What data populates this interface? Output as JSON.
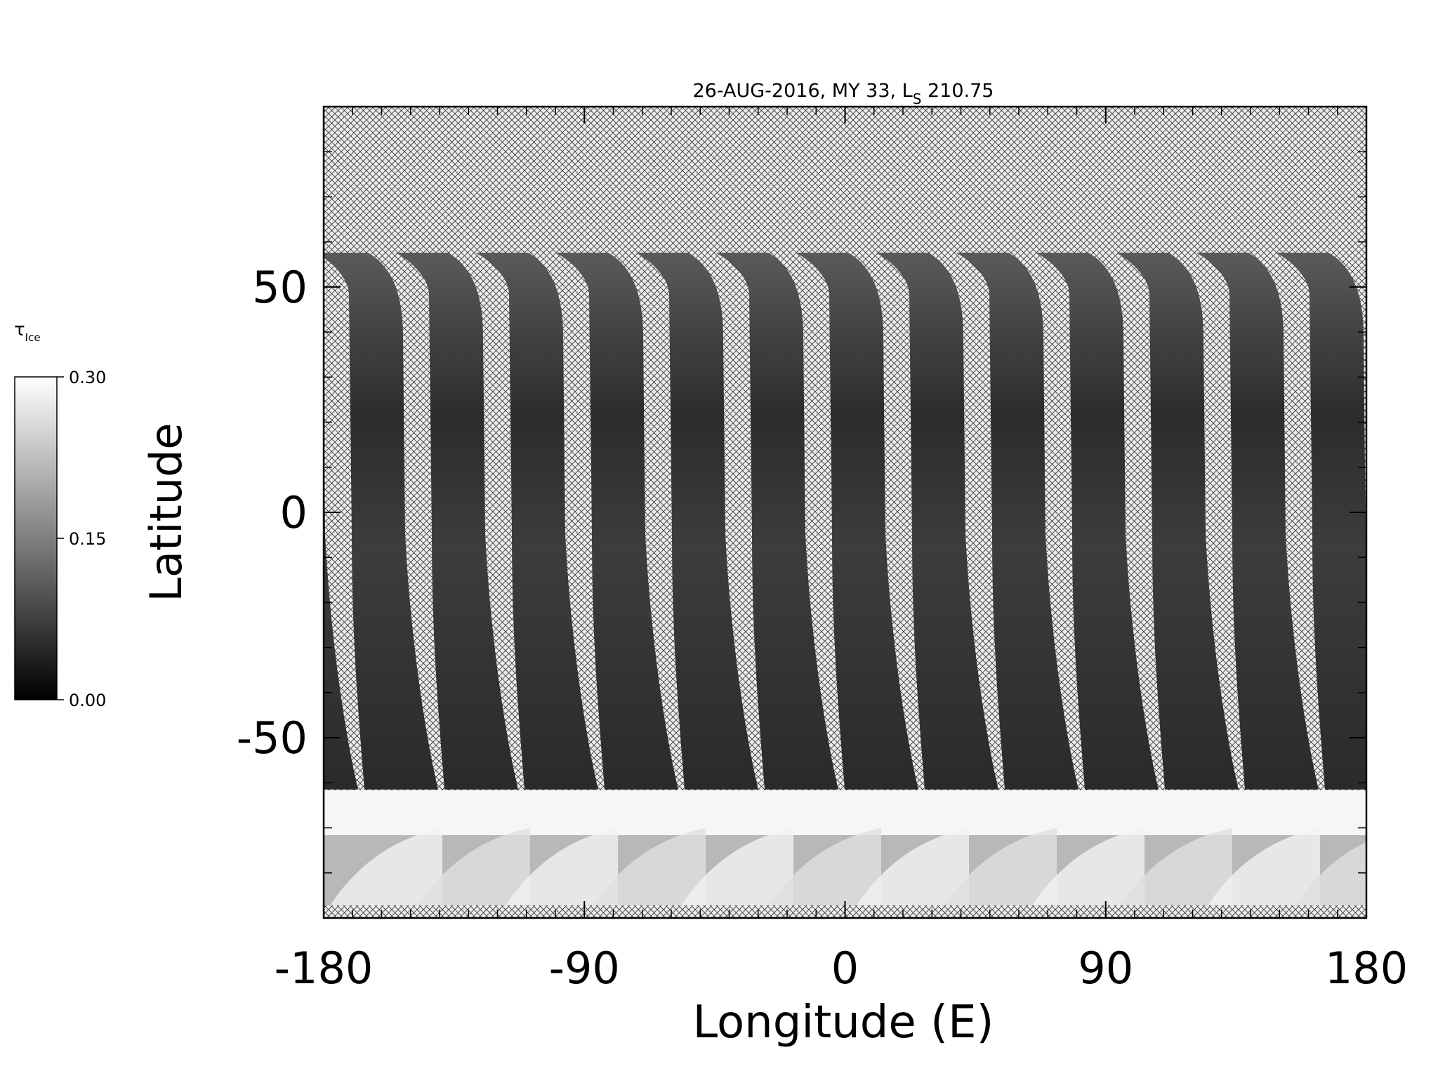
{
  "chart_data": {
    "type": "map",
    "title_parts": [
      "26-AUG-2016, MY 33,  L",
      "S",
      " 210.75"
    ],
    "x_label": "Longitude (E)",
    "y_label": "Latitude",
    "xlim": [
      -180,
      180
    ],
    "xticks": [
      -180,
      -90,
      0,
      90,
      180
    ],
    "xminorticks": [
      -170,
      -160,
      -150,
      -140,
      -130,
      -120,
      -110,
      -100,
      -80,
      -70,
      -60,
      -50,
      -40,
      -30,
      -20,
      -10,
      10,
      20,
      30,
      40,
      50,
      60,
      70,
      80,
      100,
      110,
      120,
      130,
      140,
      150,
      160,
      170
    ],
    "ylim": [
      -90,
      90
    ],
    "yticks": [
      -50,
      0,
      50
    ],
    "yminorticks": [
      -80,
      -70,
      -60,
      -40,
      -30,
      -20,
      -10,
      10,
      20,
      30,
      40,
      60,
      70,
      80
    ],
    "colorbar": {
      "label": "τ",
      "label_subscript": "Ice",
      "clim": [
        0,
        0.3
      ],
      "ticks": [
        {
          "value": 0,
          "label": "0.00"
        },
        {
          "value": 0.15,
          "label": "0.15"
        },
        {
          "value": 0.3,
          "label": "0.30"
        }
      ]
    }
  }
}
